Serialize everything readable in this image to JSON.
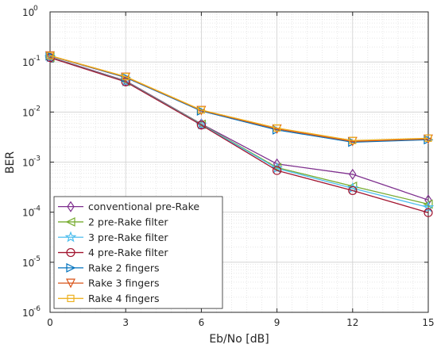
{
  "chart_data": {
    "type": "line",
    "title": "",
    "xlabel": "Eb/No [dB]",
    "ylabel": "BER",
    "x": [
      0,
      3,
      6,
      9,
      12,
      15
    ],
    "xlim": [
      0,
      15
    ],
    "ylim": [
      1e-06,
      1
    ],
    "y_scale": "log",
    "grid": true,
    "minor_grid": true,
    "legend_position": "bottom-left",
    "x_ticks": [
      {
        "value": 0,
        "label": "0"
      },
      {
        "value": 3,
        "label": "3"
      },
      {
        "value": 6,
        "label": "6"
      },
      {
        "value": 9,
        "label": "9"
      },
      {
        "value": 12,
        "label": "12"
      },
      {
        "value": 15,
        "label": "15"
      }
    ],
    "y_ticks": [
      {
        "value": 1e-06,
        "base": "10",
        "exp": "-6"
      },
      {
        "value": 1e-05,
        "base": "10",
        "exp": "-5"
      },
      {
        "value": 0.0001,
        "base": "10",
        "exp": "-4"
      },
      {
        "value": 0.001,
        "base": "10",
        "exp": "-3"
      },
      {
        "value": 0.01,
        "base": "10",
        "exp": "-2"
      },
      {
        "value": 0.1,
        "base": "10",
        "exp": "-1"
      },
      {
        "value": 1,
        "base": "10",
        "exp": "0"
      }
    ],
    "series": [
      {
        "name": "conventional pre-Rake",
        "color": "#7e2f8e",
        "marker": "diamond",
        "values": [
          0.125,
          0.042,
          0.0058,
          0.00092,
          0.00057,
          0.000175
        ]
      },
      {
        "name": "2 pre-Rake filter",
        "color": "#77ac30",
        "marker": "triangle-left",
        "values": [
          0.124,
          0.041,
          0.0057,
          0.00078,
          0.00033,
          0.000145
        ]
      },
      {
        "name": "3 pre-Rake filter",
        "color": "#4dbeee",
        "marker": "pentagram",
        "values": [
          0.123,
          0.0405,
          0.0056,
          0.00075,
          0.0003,
          0.000125
        ]
      },
      {
        "name": "4 pre-Rake filter",
        "color": "#a2142f",
        "marker": "circle",
        "values": [
          0.122,
          0.04,
          0.0055,
          0.00068,
          0.00027,
          9.8e-05
        ]
      },
      {
        "name": "Rake 2 fingers",
        "color": "#0072bd",
        "marker": "triangle-right",
        "values": [
          0.132,
          0.049,
          0.0105,
          0.0044,
          0.0025,
          0.0028
        ]
      },
      {
        "name": "Rake 3 fingers",
        "color": "#d95319",
        "marker": "triangle-down",
        "values": [
          0.133,
          0.05,
          0.0108,
          0.0046,
          0.0026,
          0.0029
        ]
      },
      {
        "name": "Rake 4 fingers",
        "color": "#edb120",
        "marker": "square",
        "values": [
          0.134,
          0.051,
          0.011,
          0.0048,
          0.0027,
          0.003
        ]
      }
    ]
  }
}
